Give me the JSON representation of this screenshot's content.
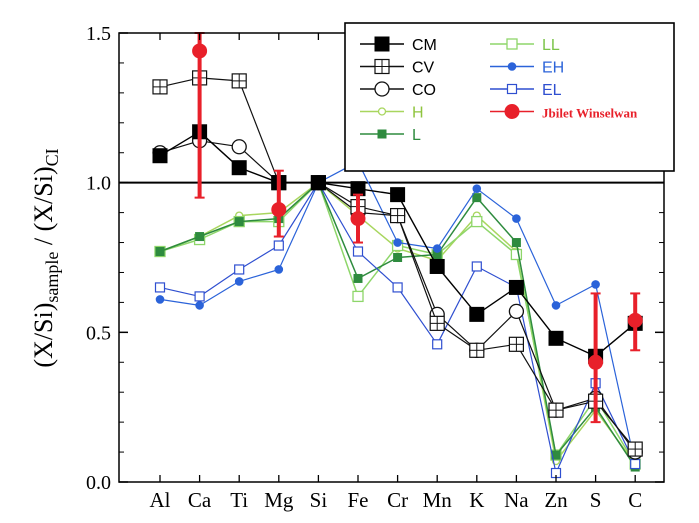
{
  "chart_data": {
    "type": "line",
    "title": "",
    "xlabel": "",
    "ylabel": "(X/Si)sample / (X/Si)CI",
    "ylabel_parts": {
      "open": "(X/Si)",
      "sub1": "sample",
      "mid": " / (X/Si)",
      "sub2": "CI"
    },
    "categories": [
      "Al",
      "Ca",
      "Ti",
      "Mg",
      "Si",
      "Fe",
      "Cr",
      "Mn",
      "K",
      "Na",
      "Zn",
      "S",
      "C"
    ],
    "ylim": [
      0,
      1.5
    ],
    "yticks": [
      {
        "value": 0,
        "label": "0.0"
      },
      {
        "value": 0.5,
        "label": "0.5"
      },
      {
        "value": 1,
        "label": "1.0"
      },
      {
        "value": 1.5,
        "label": "1.5"
      }
    ],
    "reference_line": 1.0,
    "grid": false,
    "legend_position": "top-right",
    "series": [
      {
        "name": "H",
        "color": "#a8d65e",
        "marker": "circle-open-small",
        "lineWidth": 1.5,
        "values": [
          0.77,
          0.82,
          0.89,
          0.9,
          1.0,
          0.89,
          0.78,
          0.74,
          0.89,
          0.77,
          0.07,
          0.24,
          0.06
        ]
      },
      {
        "name": "LL",
        "color": "#8ed66a",
        "marker": "square-open",
        "lineWidth": 1.5,
        "values": [
          0.77,
          0.81,
          0.87,
          0.87,
          1.0,
          0.62,
          0.79,
          0.76,
          0.87,
          0.76,
          0.09,
          0.28,
          0.06
        ]
      },
      {
        "name": "L",
        "color": "#2e8b3e",
        "marker": "square-filled-small",
        "lineWidth": 1.5,
        "values": [
          0.77,
          0.82,
          0.87,
          0.88,
          1.0,
          0.68,
          0.75,
          0.76,
          0.95,
          0.8,
          0.09,
          0.25,
          0.05
        ]
      },
      {
        "name": "EH",
        "color": "#2b63d9",
        "marker": "circle-filled-small",
        "lineWidth": 1.2,
        "values": [
          0.61,
          0.59,
          0.67,
          0.71,
          1.0,
          1.07,
          0.8,
          0.78,
          0.98,
          0.88,
          0.59,
          0.66,
          0.06
        ]
      },
      {
        "name": "EL",
        "color": "#2f4fd0",
        "marker": "square-open-small",
        "lineWidth": 1.2,
        "values": [
          0.65,
          0.62,
          0.71,
          0.79,
          1.0,
          0.77,
          0.65,
          0.46,
          0.72,
          0.65,
          0.03,
          0.33,
          0.06
        ]
      },
      {
        "name": "CO",
        "color": "#111111",
        "marker": "circle-open",
        "lineWidth": 1.2,
        "values": [
          1.1,
          1.14,
          1.12,
          1.0,
          1.0,
          0.9,
          0.89,
          0.56,
          0.44,
          0.57,
          0.24,
          0.28,
          0.1
        ]
      },
      {
        "name": "CV",
        "color": "#111111",
        "marker": "square-cross",
        "lineWidth": 1.2,
        "values": [
          1.32,
          1.35,
          1.34,
          1.0,
          1.0,
          0.92,
          0.89,
          0.53,
          0.44,
          0.46,
          0.24,
          0.27,
          0.11
        ]
      },
      {
        "name": "CM",
        "color": "#000000",
        "marker": "square-filled",
        "lineWidth": 1.4,
        "values": [
          1.09,
          1.17,
          1.05,
          1.0,
          1.0,
          0.98,
          0.96,
          0.72,
          0.56,
          0.65,
          0.48,
          0.42,
          0.53
        ]
      },
      {
        "name": "Jbilet Winselwan",
        "color": "#e8202a",
        "marker": "circle-filled-red",
        "errorbars": true,
        "line": false,
        "points": [
          {
            "category": "Ca",
            "value": 1.44,
            "err_low": 0.95,
            "err_high": 1.5
          },
          {
            "category": "Mg",
            "value": 0.91,
            "err_low": 0.82,
            "err_high": 1.04
          },
          {
            "category": "Fe",
            "value": 0.88,
            "err_low": 0.8,
            "err_high": 0.96
          },
          {
            "category": "S",
            "value": 0.4,
            "err_low": 0.2,
            "err_high": 0.63
          },
          {
            "category": "C",
            "value": 0.54,
            "err_low": 0.44,
            "err_high": 0.63
          }
        ]
      }
    ],
    "legend": {
      "left_column": [
        {
          "label": "CM",
          "color": "#000000",
          "marker": "square-filled",
          "label_color": "#000000"
        },
        {
          "label": "CV",
          "color": "#111111",
          "marker": "square-cross",
          "label_color": "#000000"
        },
        {
          "label": "CO",
          "color": "#111111",
          "marker": "circle-open",
          "label_color": "#000000"
        },
        {
          "label": "H",
          "color": "#a8d65e",
          "marker": "circle-open-small",
          "label_color": "#8fc43e"
        },
        {
          "label": "L",
          "color": "#2e8b3e",
          "marker": "square-filled-small",
          "label_color": "#2e8b3e"
        }
      ],
      "right_column": [
        {
          "label": "LL",
          "color": "#8ed66a",
          "marker": "square-open",
          "label_color": "#7cc44a"
        },
        {
          "label": "EH",
          "color": "#2b63d9",
          "marker": "circle-filled-small",
          "label_color": "#2b63d9"
        },
        {
          "label": "EL",
          "color": "#2f4fd0",
          "marker": "square-open-small",
          "label_color": "#2f4fd0"
        },
        {
          "label": "Jbilet Winselwan",
          "color": "#e8202a",
          "marker": "circle-filled-red",
          "label_color": "#e8202a"
        }
      ]
    }
  }
}
